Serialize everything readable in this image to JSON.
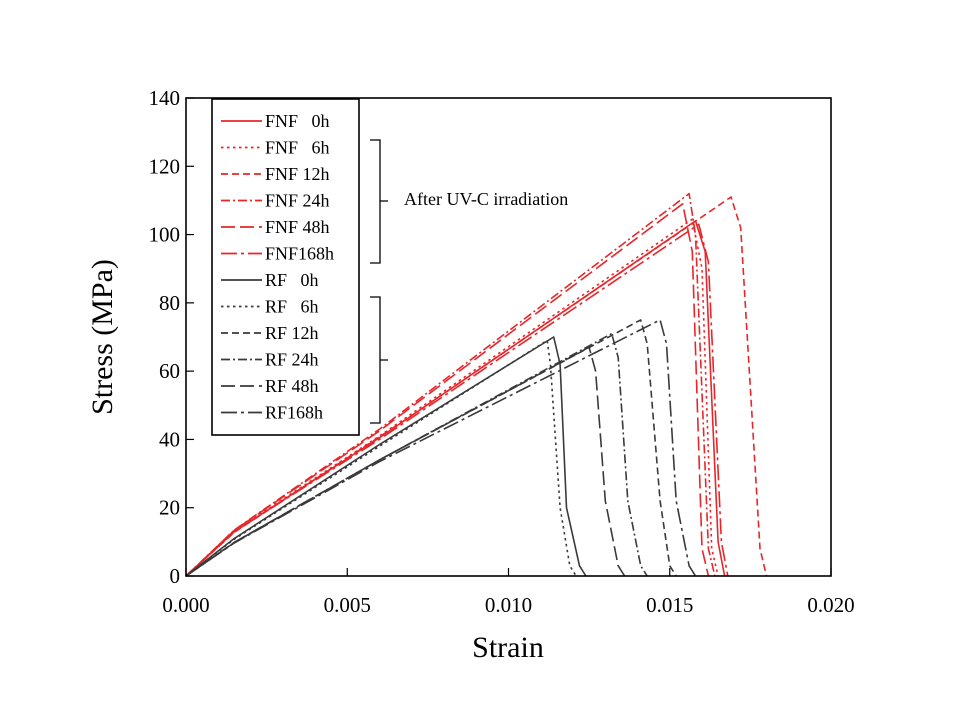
{
  "chart_data": {
    "type": "line",
    "title": "",
    "xlabel": "Strain",
    "ylabel": "Stress (MPa)",
    "xlim": [
      0.0,
      0.02
    ],
    "ylim": [
      0,
      140
    ],
    "xticks": [
      "0.000",
      "0.005",
      "0.010",
      "0.015",
      "0.020"
    ],
    "yticks": [
      "0",
      "20",
      "40",
      "60",
      "80",
      "100",
      "120",
      "140"
    ],
    "grid": false,
    "legend_position": "top-left",
    "annotation": "After UV-C irradiation",
    "colors": {
      "FNF": "#e8262a",
      "RF": "#3a3a3a"
    },
    "series": [
      {
        "name": "FNF   0h",
        "group": "FNF",
        "dash": "solid",
        "x": [
          0,
          0.0015,
          0.006,
          0.0158,
          0.0161,
          0.0165,
          0.0167
        ],
        "y": [
          0,
          13,
          40.5,
          104,
          95,
          10,
          0
        ]
      },
      {
        "name": "FNF   6h",
        "group": "FNF",
        "dash": "dot",
        "x": [
          0,
          0.0015,
          0.006,
          0.0157,
          0.016,
          0.0163,
          0.0165
        ],
        "y": [
          0,
          13.2,
          41,
          104.5,
          90,
          8,
          0
        ]
      },
      {
        "name": "FNF 12h",
        "group": "FNF",
        "dash": "dash",
        "x": [
          0,
          0.0015,
          0.007,
          0.0169,
          0.0172,
          0.0178,
          0.018
        ],
        "y": [
          0,
          12.8,
          47,
          111,
          102,
          8,
          0
        ]
      },
      {
        "name": "FNF 24h",
        "group": "FNF",
        "dash": "dashdot",
        "x": [
          0,
          0.0015,
          0.006,
          0.0156,
          0.0158,
          0.0162,
          0.0164
        ],
        "y": [
          0,
          13.5,
          43,
          112,
          100,
          8,
          0
        ]
      },
      {
        "name": "FNF 48h",
        "group": "FNF",
        "dash": "longdash",
        "x": [
          0,
          0.0015,
          0.006,
          0.0154,
          0.0157,
          0.016,
          0.0162
        ],
        "y": [
          0,
          13.4,
          42.5,
          109,
          95,
          8,
          0
        ]
      },
      {
        "name": "FNF168h",
        "group": "FNF",
        "dash": "longdashdot",
        "x": [
          0,
          0.0015,
          0.006,
          0.0159,
          0.0162,
          0.0166,
          0.0168
        ],
        "y": [
          0,
          13,
          40,
          103,
          92,
          10,
          0
        ]
      },
      {
        "name": "RF   0h",
        "group": "RF",
        "dash": "solid",
        "x": [
          0,
          0.0015,
          0.006,
          0.0114,
          0.0116,
          0.0118,
          0.0122,
          0.0124
        ],
        "y": [
          0,
          11,
          38.5,
          70,
          62,
          20,
          3,
          0
        ]
      },
      {
        "name": "RF   6h",
        "group": "RF",
        "dash": "dot",
        "x": [
          0,
          0.0015,
          0.006,
          0.0112,
          0.0113,
          0.0116,
          0.0119,
          0.0121
        ],
        "y": [
          0,
          10.8,
          38,
          69,
          62,
          20,
          3,
          0
        ]
      },
      {
        "name": "RF 12h",
        "group": "RF",
        "dash": "dash",
        "x": [
          0,
          0.0015,
          0.006,
          0.0141,
          0.0143,
          0.0147,
          0.015,
          0.0152
        ],
        "y": [
          0,
          9.8,
          34,
          75,
          68,
          22,
          3,
          0
        ]
      },
      {
        "name": "RF 24h",
        "group": "RF",
        "dash": "dashdot",
        "x": [
          0,
          0.0015,
          0.006,
          0.0132,
          0.0134,
          0.0137,
          0.0141,
          0.0143
        ],
        "y": [
          0,
          9.8,
          34,
          71,
          64,
          22,
          3,
          0
        ]
      },
      {
        "name": "RF 48h",
        "group": "RF",
        "dash": "longdash",
        "x": [
          0,
          0.0015,
          0.006,
          0.0125,
          0.0127,
          0.013,
          0.0134,
          0.0136
        ],
        "y": [
          0,
          9.9,
          34,
          67,
          60,
          22,
          3,
          0
        ]
      },
      {
        "name": "RF168h",
        "group": "RF",
        "dash": "longdashdot",
        "x": [
          0,
          0.0015,
          0.006,
          0.0147,
          0.0149,
          0.0152,
          0.0156,
          0.0158
        ],
        "y": [
          0,
          9.7,
          33.5,
          75,
          68,
          22,
          3,
          0
        ]
      }
    ]
  }
}
